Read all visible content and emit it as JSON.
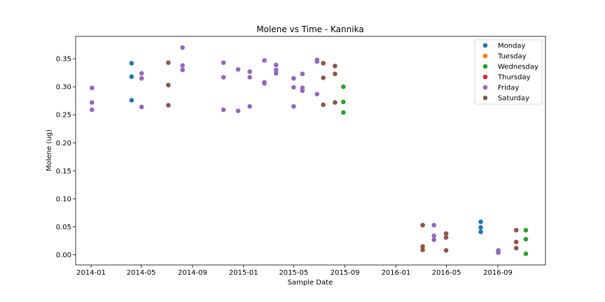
{
  "chart_data": {
    "type": "scatter",
    "title": "Molene vs Time - Kannika",
    "xlabel": "Sample Date",
    "ylabel": "Molene (ug)",
    "xlim": [
      "2013-11-25",
      "2016-12-24"
    ],
    "ylim": [
      -0.018,
      0.39
    ],
    "x_ticks": [
      "2014-01",
      "2014-05",
      "2014-09",
      "2015-01",
      "2015-05",
      "2015-09",
      "2016-01",
      "2016-05",
      "2016-09"
    ],
    "y_ticks": [
      "0.00",
      "0.05",
      "0.10",
      "0.15",
      "0.20",
      "0.25",
      "0.30",
      "0.35"
    ],
    "grid": false,
    "legend_position": "top-right",
    "series": [
      {
        "name": "Monday",
        "color": "#1f77b4",
        "points": [
          {
            "x": "2014-04-08",
            "y": 0.342
          },
          {
            "x": "2014-04-08",
            "y": 0.318
          },
          {
            "x": "2014-04-08",
            "y": 0.276
          },
          {
            "x": "2016-07-22",
            "y": 0.059
          },
          {
            "x": "2016-07-22",
            "y": 0.049
          },
          {
            "x": "2016-07-22",
            "y": 0.041
          }
        ]
      },
      {
        "name": "Tuesday",
        "color": "#ff7f0e",
        "points": []
      },
      {
        "name": "Wednesday",
        "color": "#2ca02c",
        "points": [
          {
            "x": "2015-08-28",
            "y": 0.3
          },
          {
            "x": "2015-08-28",
            "y": 0.273
          },
          {
            "x": "2015-08-28",
            "y": 0.254
          },
          {
            "x": "2016-11-07",
            "y": 0.044
          },
          {
            "x": "2016-11-07",
            "y": 0.028
          },
          {
            "x": "2016-11-07",
            "y": 0.002
          }
        ]
      },
      {
        "name": "Thursday",
        "color": "#d62728",
        "points": []
      },
      {
        "name": "Friday",
        "color": "#9467bd",
        "points": [
          {
            "x": "2014-01-03",
            "y": 0.298
          },
          {
            "x": "2014-01-03",
            "y": 0.272
          },
          {
            "x": "2014-01-03",
            "y": 0.259
          },
          {
            "x": "2014-05-02",
            "y": 0.324
          },
          {
            "x": "2014-05-02",
            "y": 0.315
          },
          {
            "x": "2014-05-02",
            "y": 0.264
          },
          {
            "x": "2014-08-08",
            "y": 0.37
          },
          {
            "x": "2014-08-08",
            "y": 0.338
          },
          {
            "x": "2014-08-08",
            "y": 0.33
          },
          {
            "x": "2014-11-14",
            "y": 0.343
          },
          {
            "x": "2014-11-14",
            "y": 0.317
          },
          {
            "x": "2014-11-14",
            "y": 0.259
          },
          {
            "x": "2014-12-19",
            "y": 0.331
          },
          {
            "x": "2014-12-19",
            "y": 0.257
          },
          {
            "x": "2015-01-16",
            "y": 0.327
          },
          {
            "x": "2015-01-16",
            "y": 0.317
          },
          {
            "x": "2015-01-16",
            "y": 0.265
          },
          {
            "x": "2015-02-20",
            "y": 0.347
          },
          {
            "x": "2015-02-20",
            "y": 0.308
          },
          {
            "x": "2015-02-20",
            "y": 0.306
          },
          {
            "x": "2015-03-20",
            "y": 0.339
          },
          {
            "x": "2015-03-20",
            "y": 0.33
          },
          {
            "x": "2015-03-20",
            "y": 0.324
          },
          {
            "x": "2015-05-01",
            "y": 0.315
          },
          {
            "x": "2015-05-01",
            "y": 0.299
          },
          {
            "x": "2015-05-01",
            "y": 0.265
          },
          {
            "x": "2015-05-22",
            "y": 0.323
          },
          {
            "x": "2015-05-22",
            "y": 0.298
          },
          {
            "x": "2015-05-22",
            "y": 0.293
          },
          {
            "x": "2015-06-26",
            "y": 0.348
          },
          {
            "x": "2015-06-26",
            "y": 0.345
          },
          {
            "x": "2015-06-26",
            "y": 0.287
          },
          {
            "x": "2016-04-01",
            "y": 0.053
          },
          {
            "x": "2016-04-01",
            "y": 0.034
          },
          {
            "x": "2016-04-01",
            "y": 0.027
          },
          {
            "x": "2016-09-02",
            "y": 0.008
          },
          {
            "x": "2016-09-02",
            "y": 0.005
          },
          {
            "x": "2016-09-02",
            "y": 0.004
          }
        ]
      },
      {
        "name": "Saturday",
        "color": "#8c564b",
        "points": [
          {
            "x": "2014-07-05",
            "y": 0.343
          },
          {
            "x": "2014-07-05",
            "y": 0.303
          },
          {
            "x": "2014-07-05",
            "y": 0.267
          },
          {
            "x": "2015-07-11",
            "y": 0.342
          },
          {
            "x": "2015-07-11",
            "y": 0.316
          },
          {
            "x": "2015-07-11",
            "y": 0.268
          },
          {
            "x": "2015-08-08",
            "y": 0.337
          },
          {
            "x": "2015-08-08",
            "y": 0.323
          },
          {
            "x": "2015-08-08",
            "y": 0.272
          },
          {
            "x": "2016-03-05",
            "y": 0.053
          },
          {
            "x": "2016-03-05",
            "y": 0.015
          },
          {
            "x": "2016-03-05",
            "y": 0.009
          },
          {
            "x": "2016-04-30",
            "y": 0.038
          },
          {
            "x": "2016-04-30",
            "y": 0.031
          },
          {
            "x": "2016-04-30",
            "y": 0.008
          },
          {
            "x": "2016-10-15",
            "y": 0.044
          },
          {
            "x": "2016-10-15",
            "y": 0.023
          },
          {
            "x": "2016-10-15",
            "y": 0.012
          }
        ]
      }
    ]
  }
}
